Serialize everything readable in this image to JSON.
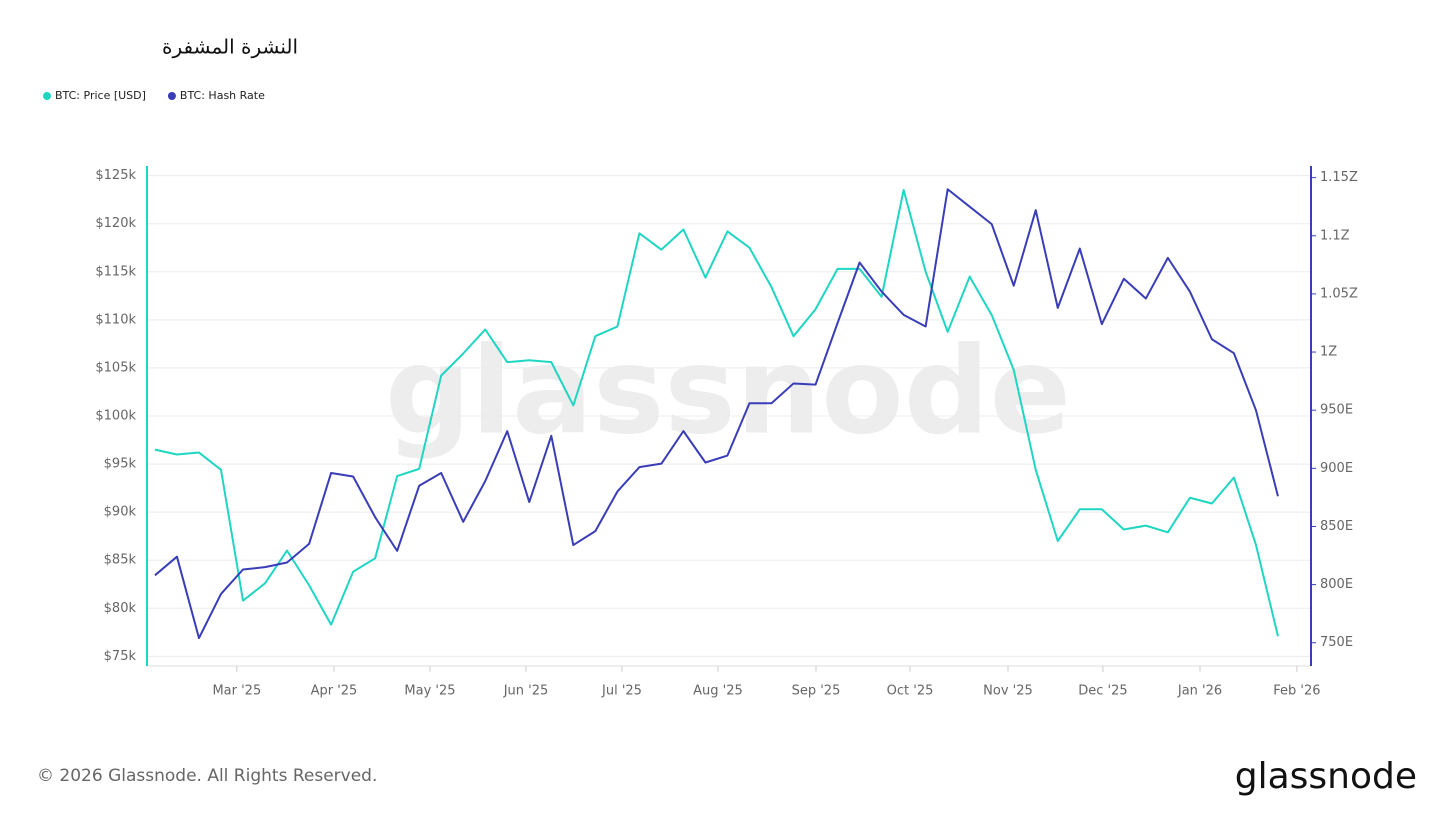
{
  "chart_data": {
    "type": "line",
    "title": "النشرة المشفرة",
    "footer": "© 2026 Glassnode. All Rights Reserved.",
    "logo": "glassnode",
    "watermark": "glassnode",
    "categories": [
      null,
      null,
      null,
      null,
      null,
      null,
      null,
      null,
      null,
      null,
      null,
      null,
      null,
      null,
      null,
      null,
      null,
      null,
      null,
      null,
      null,
      null,
      null,
      null,
      null,
      null,
      null,
      null,
      null,
      null,
      null,
      null,
      null,
      null,
      null,
      null,
      null,
      null,
      null,
      null,
      null,
      null,
      null,
      null,
      null,
      null,
      null,
      null,
      null,
      null,
      null,
      null
    ],
    "xlim": [
      -0.36,
      52.5
    ],
    "xticks": [
      {
        "value": 3.72,
        "label": "Mar '25"
      },
      {
        "value": 8.13,
        "label": "Apr '25"
      },
      {
        "value": 12.49,
        "label": "May '25"
      },
      {
        "value": 16.85,
        "label": "Jun '25"
      },
      {
        "value": 21.21,
        "label": "Jul '25"
      },
      {
        "value": 25.57,
        "label": "Aug '25"
      },
      {
        "value": 30.02,
        "label": "Sep '25"
      },
      {
        "value": 34.29,
        "label": "Oct '25"
      },
      {
        "value": 38.74,
        "label": "Nov '25"
      },
      {
        "value": 43.05,
        "label": "Dec '25"
      },
      {
        "value": 47.46,
        "label": "Jan '26"
      },
      {
        "value": 51.86,
        "label": "Feb '26"
      }
    ],
    "ylim": [
      74000,
      126000
    ],
    "yticks": [
      {
        "value": 75000,
        "label": "$75k"
      },
      {
        "value": 80000,
        "label": "$80k"
      },
      {
        "value": 85000,
        "label": "$85k"
      },
      {
        "value": 90000,
        "label": "$90k"
      },
      {
        "value": 95000,
        "label": "$95k"
      },
      {
        "value": 100000,
        "label": "$100k"
      },
      {
        "value": 105000,
        "label": "$105k"
      },
      {
        "value": 110000,
        "label": "$110k"
      },
      {
        "value": 115000,
        "label": "$115k"
      },
      {
        "value": 120000,
        "label": "$120k"
      },
      {
        "value": 125000,
        "label": "$125k"
      }
    ],
    "y2lim": [
      730,
      1160
    ],
    "y2ticks": [
      {
        "value": 750,
        "label": "750E"
      },
      {
        "value": 800,
        "label": "800E"
      },
      {
        "value": 850,
        "label": "850E"
      },
      {
        "value": 900,
        "label": "900E"
      },
      {
        "value": 950,
        "label": "950E"
      },
      {
        "value": 1000,
        "label": "1Z"
      },
      {
        "value": 1050,
        "label": "1.05Z"
      },
      {
        "value": 1100,
        "label": "1.1Z"
      },
      {
        "value": 1150,
        "label": "1.15Z"
      }
    ],
    "grid": true,
    "series": [
      {
        "name": "BTC: Price [USD]",
        "color": "#1fd6c2",
        "axis": "y",
        "values": [
          96500,
          96000,
          96200,
          94400,
          80800,
          82600,
          86000,
          82400,
          78300,
          83800,
          85200,
          93750,
          94500,
          104200,
          106500,
          109000,
          105600,
          105800,
          105600,
          101100,
          108300,
          109300,
          119000,
          117300,
          119400,
          114400,
          119200,
          117500,
          113400,
          108300,
          111100,
          115300,
          115300,
          112400,
          123500,
          115000,
          108750,
          114500,
          110500,
          104800,
          94400,
          87000,
          90300,
          90300,
          88200,
          88600,
          87900,
          91500,
          90900,
          93600,
          86600,
          77100
        ]
      },
      {
        "name": "BTC: Hash Rate",
        "color": "#3a3db8",
        "axis": "y2",
        "values": [
          808,
          824,
          754,
          792,
          813,
          815,
          819,
          835,
          896,
          893,
          858,
          829,
          885,
          896,
          854,
          889,
          932,
          871,
          928,
          834,
          846,
          880,
          901,
          904,
          932,
          905,
          911,
          956,
          956,
          973,
          972,
          1025,
          1077,
          1052,
          1032,
          1022,
          1140,
          1125,
          1110,
          1057,
          1122,
          1038,
          1089,
          1024,
          1063,
          1046,
          1081,
          1052,
          1011,
          999,
          950,
          876
        ]
      }
    ]
  }
}
